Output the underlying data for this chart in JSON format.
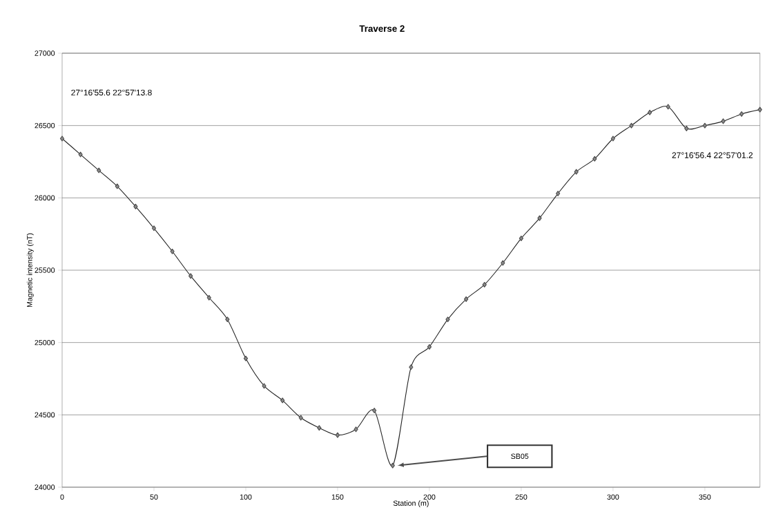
{
  "chart_data": {
    "type": "line",
    "title": "Traverse 2",
    "xlabel": "Station (m)",
    "ylabel": "Magnetic intensity (nT)",
    "x": [
      0,
      10,
      20,
      30,
      40,
      50,
      60,
      70,
      80,
      90,
      100,
      110,
      120,
      130,
      140,
      150,
      160,
      170,
      180,
      190,
      200,
      210,
      220,
      230,
      240,
      250,
      260,
      270,
      280,
      290,
      300,
      310,
      320,
      330,
      340,
      350,
      360,
      370,
      380
    ],
    "series": [
      {
        "color": "#222222",
        "values": [
          26410,
          26300,
          26190,
          26080,
          25940,
          25790,
          25630,
          25460,
          25310,
          25160,
          24890,
          24700,
          24600,
          24480,
          24410,
          24360,
          24400,
          24530,
          24150,
          24830,
          24970,
          25160,
          25300,
          25400,
          25550,
          25720,
          25860,
          26030,
          26180,
          26270,
          26410,
          26500,
          26590,
          26630,
          26480,
          26500,
          26530,
          26580,
          26610
        ]
      }
    ],
    "xlim": [
      0,
      380
    ],
    "xticks": [
      0,
      50,
      100,
      150,
      200,
      250,
      300,
      350
    ],
    "ylim": [
      24000,
      27000
    ],
    "yticks": [
      24000,
      24500,
      25000,
      25500,
      26000,
      26500,
      27000
    ],
    "grid": "y",
    "marker": "diamond",
    "line_style": "solid",
    "annotations": [
      "27°16'55.6  22°57'13.8",
      "27°16'56.4  22°57'01.2",
      "SB05"
    ]
  }
}
